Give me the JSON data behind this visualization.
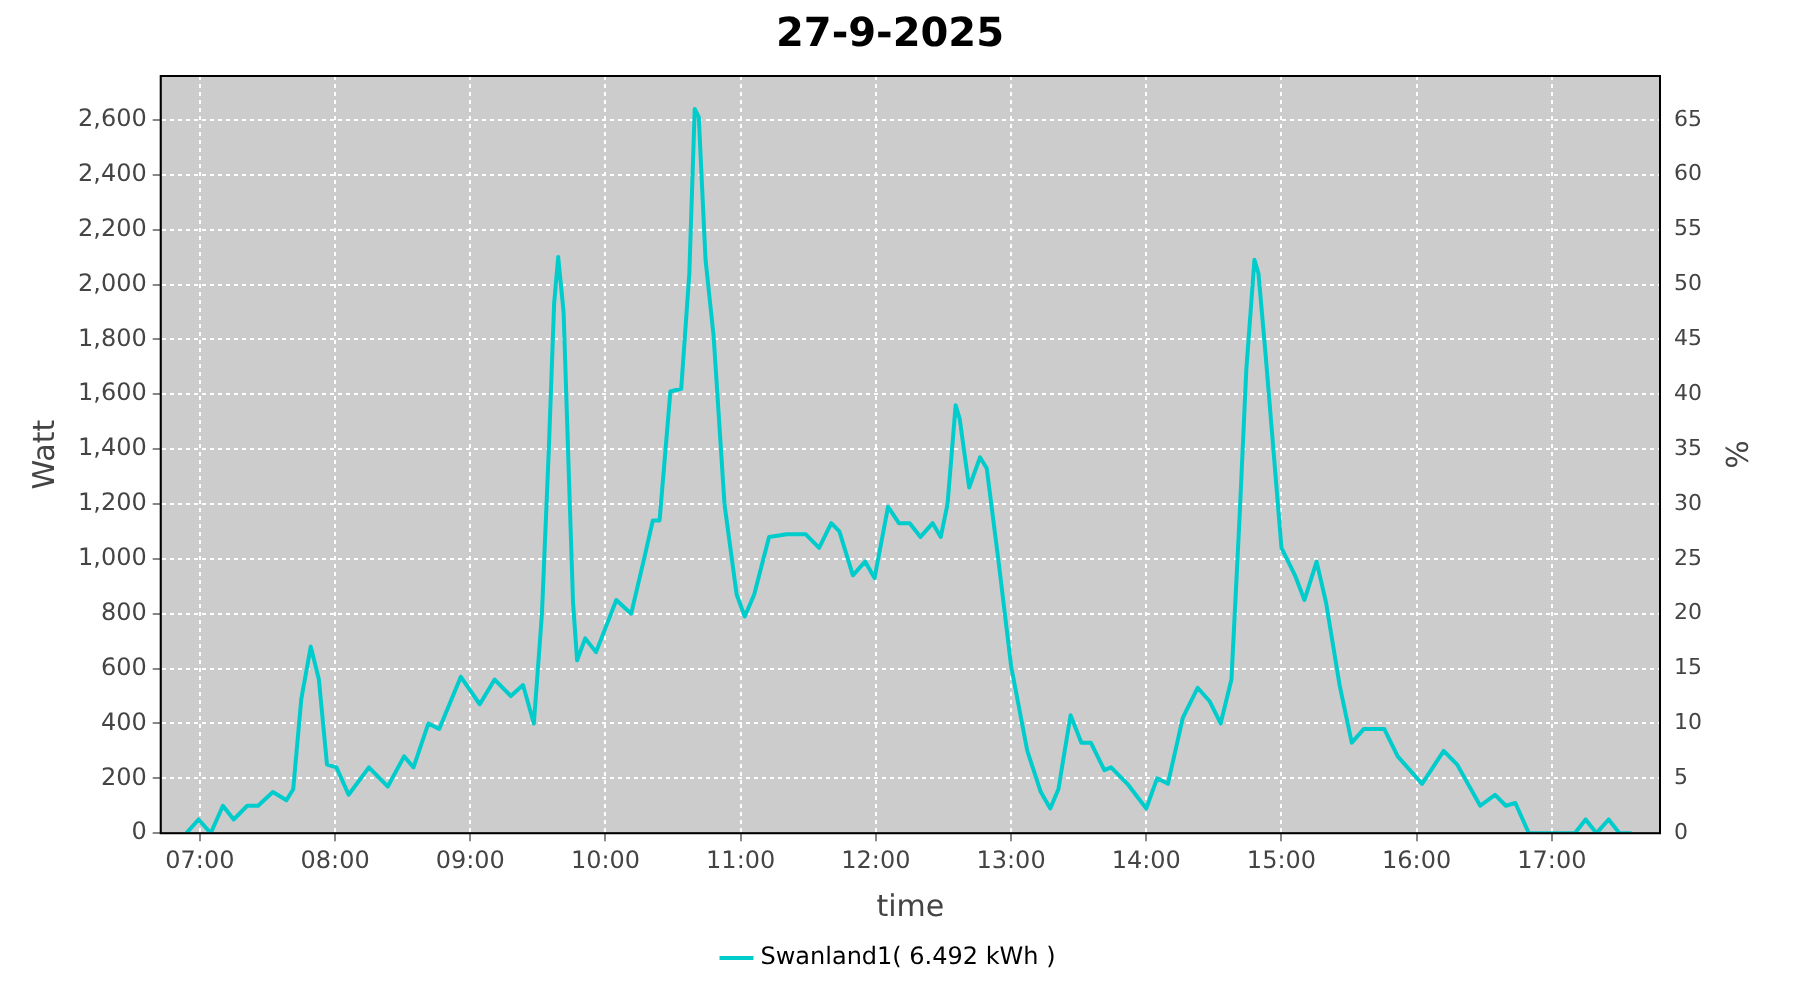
{
  "chart_data": {
    "type": "line",
    "title": "27-9-2025",
    "xlabel": "time",
    "ylabel": "Watt",
    "y2label": "%",
    "xlim": [
      6.71,
      17.8
    ],
    "xticks": [
      {
        "value": 7,
        "label": "07:00"
      },
      {
        "value": 8,
        "label": "08:00"
      },
      {
        "value": 9,
        "label": "09:00"
      },
      {
        "value": 10,
        "label": "10:00"
      },
      {
        "value": 11,
        "label": "11:00"
      },
      {
        "value": 12,
        "label": "12:00"
      },
      {
        "value": 13,
        "label": "13:00"
      },
      {
        "value": 14,
        "label": "14:00"
      },
      {
        "value": 15,
        "label": "15:00"
      },
      {
        "value": 16,
        "label": "16:00"
      },
      {
        "value": 17,
        "label": "17:00"
      }
    ],
    "ylim": [
      0,
      2760
    ],
    "yticks": [
      {
        "value": 0,
        "label": "0"
      },
      {
        "value": 200,
        "label": "200"
      },
      {
        "value": 400,
        "label": "400"
      },
      {
        "value": 600,
        "label": "600"
      },
      {
        "value": 800,
        "label": "800"
      },
      {
        "value": 1000,
        "label": "1,000"
      },
      {
        "value": 1200,
        "label": "1,200"
      },
      {
        "value": 1400,
        "label": "1,400"
      },
      {
        "value": 1600,
        "label": "1,600"
      },
      {
        "value": 1800,
        "label": "1,800"
      },
      {
        "value": 2000,
        "label": "2,000"
      },
      {
        "value": 2200,
        "label": "2,200"
      },
      {
        "value": 2400,
        "label": "2,400"
      },
      {
        "value": 2600,
        "label": "2,600"
      }
    ],
    "y2lim": [
      0,
      69
    ],
    "y2ticks": [
      0,
      5,
      10,
      15,
      20,
      25,
      30,
      35,
      40,
      45,
      50,
      55,
      60,
      65
    ],
    "grid": true,
    "legend": "bottom",
    "marker": "none",
    "line_style": "solid",
    "series": [
      {
        "name": "Swanland1( 6.492 kWh )",
        "color": "#00cccc",
        "x": [
          6.9,
          6.99,
          7.08,
          7.17,
          7.25,
          7.35,
          7.43,
          7.54,
          7.64,
          7.69,
          7.75,
          7.82,
          7.88,
          7.94,
          8.01,
          8.1,
          8.25,
          8.39,
          8.51,
          8.58,
          8.69,
          8.77,
          8.93,
          9.07,
          9.18,
          9.3,
          9.39,
          9.47,
          9.53,
          9.58,
          9.62,
          9.65,
          9.69,
          9.73,
          9.76,
          9.79,
          9.85,
          9.93,
          10.08,
          10.19,
          10.29,
          10.35,
          10.4,
          10.48,
          10.56,
          10.62,
          10.66,
          10.69,
          10.74,
          10.8,
          10.88,
          10.97,
          11.03,
          11.1,
          11.21,
          11.34,
          11.48,
          11.58,
          11.67,
          11.73,
          11.83,
          11.92,
          11.99,
          12.09,
          12.17,
          12.25,
          12.33,
          12.42,
          12.48,
          12.53,
          12.59,
          12.62,
          12.69,
          12.77,
          12.82,
          12.91,
          13.0,
          13.12,
          13.22,
          13.29,
          13.35,
          13.44,
          13.52,
          13.59,
          13.69,
          13.74,
          13.86,
          14.0,
          14.08,
          14.16,
          14.27,
          14.38,
          14.47,
          14.55,
          14.63,
          14.69,
          14.74,
          14.8,
          14.83,
          14.88,
          14.93,
          15.0,
          15.1,
          15.17,
          15.26,
          15.33,
          15.43,
          15.52,
          15.61,
          15.76,
          15.86,
          16.04,
          16.2,
          16.3,
          16.47,
          16.58,
          16.66,
          16.73,
          16.83,
          17.17,
          17.25,
          17.33,
          17.42,
          17.5,
          17.59
        ],
        "values": [
          0,
          50,
          0,
          100,
          50,
          100,
          100,
          150,
          120,
          160,
          490,
          680,
          560,
          250,
          240,
          140,
          240,
          170,
          280,
          240,
          400,
          380,
          570,
          470,
          560,
          500,
          540,
          400,
          800,
          1390,
          1930,
          2100,
          1900,
          1290,
          840,
          630,
          710,
          660,
          850,
          800,
          1010,
          1140,
          1140,
          1610,
          1620,
          2040,
          2640,
          2610,
          2090,
          1810,
          1200,
          870,
          790,
          870,
          1080,
          1090,
          1090,
          1040,
          1130,
          1100,
          940,
          990,
          930,
          1190,
          1130,
          1130,
          1080,
          1130,
          1080,
          1200,
          1560,
          1510,
          1260,
          1370,
          1330,
          980,
          610,
          300,
          150,
          90,
          160,
          430,
          330,
          330,
          230,
          240,
          180,
          90,
          200,
          180,
          420,
          530,
          480,
          400,
          560,
          1150,
          1690,
          2090,
          2040,
          1760,
          1460,
          1040,
          940,
          850,
          990,
          840,
          540,
          330,
          380,
          380,
          280,
          180,
          300,
          250,
          100,
          140,
          100,
          110,
          0,
          0,
          50,
          0,
          50,
          0,
          0
        ]
      }
    ]
  }
}
